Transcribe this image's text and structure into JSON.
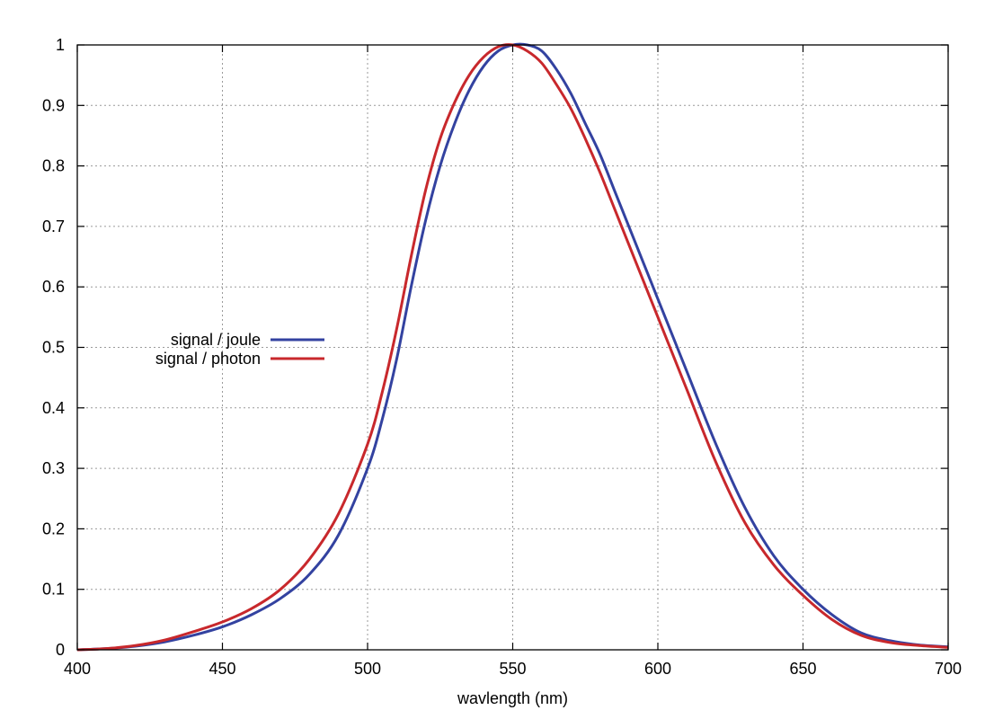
{
  "chart_data": {
    "type": "line",
    "title": "",
    "xlabel": "wavlength (nm)",
    "ylabel": "",
    "xlim": [
      400,
      700
    ],
    "ylim": [
      0,
      1
    ],
    "xticks": [
      400,
      450,
      500,
      550,
      600,
      650,
      700
    ],
    "yticks": [
      0,
      0.1,
      0.2,
      0.3,
      0.4,
      0.5,
      0.6,
      0.7,
      0.8,
      0.9,
      1
    ],
    "grid": true,
    "legend_position": "center-left",
    "series": [
      {
        "name": "signal / joule",
        "color": "#3342a0",
        "x": [
          400,
          410,
          420,
          430,
          440,
          450,
          460,
          470,
          480,
          490,
          500,
          505,
          510,
          515,
          520,
          525,
          530,
          535,
          540,
          545,
          550,
          555,
          560,
          565,
          570,
          575,
          580,
          585,
          590,
          595,
          600,
          605,
          610,
          620,
          630,
          640,
          650,
          660,
          670,
          680,
          690,
          700
        ],
        "y": [
          0.0,
          0.002,
          0.006,
          0.013,
          0.024,
          0.038,
          0.058,
          0.085,
          0.125,
          0.19,
          0.3,
          0.38,
          0.48,
          0.6,
          0.71,
          0.8,
          0.87,
          0.925,
          0.965,
          0.99,
          1.0,
          1.0,
          0.99,
          0.96,
          0.92,
          0.87,
          0.82,
          0.76,
          0.7,
          0.64,
          0.58,
          0.52,
          0.46,
          0.34,
          0.235,
          0.155,
          0.1,
          0.058,
          0.028,
          0.015,
          0.008,
          0.005
        ]
      },
      {
        "name": "signal / photon",
        "color": "#c8282c",
        "x": [
          400,
          410,
          420,
          430,
          440,
          450,
          460,
          470,
          480,
          490,
          500,
          505,
          510,
          515,
          520,
          525,
          530,
          535,
          540,
          545,
          550,
          555,
          560,
          565,
          570,
          575,
          580,
          585,
          590,
          595,
          600,
          605,
          610,
          620,
          630,
          640,
          650,
          660,
          670,
          680,
          690,
          700
        ],
        "y": [
          0.0,
          0.002,
          0.007,
          0.016,
          0.03,
          0.046,
          0.068,
          0.1,
          0.15,
          0.225,
          0.34,
          0.425,
          0.53,
          0.65,
          0.76,
          0.845,
          0.905,
          0.95,
          0.98,
          0.997,
          1.0,
          0.99,
          0.97,
          0.935,
          0.895,
          0.845,
          0.79,
          0.73,
          0.67,
          0.61,
          0.55,
          0.49,
          0.43,
          0.31,
          0.21,
          0.14,
          0.09,
          0.05,
          0.024,
          0.012,
          0.007,
          0.004
        ]
      }
    ]
  }
}
